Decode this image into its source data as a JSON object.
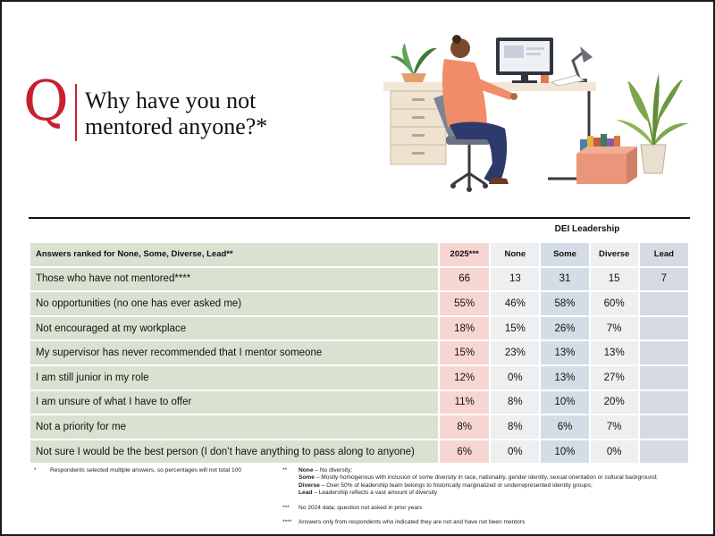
{
  "question": {
    "letter": "Q",
    "title": "Why have you not mentored anyone?*"
  },
  "group_header": "DEI Leadership",
  "table": {
    "headers": [
      "Answers ranked for None, Some, Diverse, Lead**",
      "2025***",
      "None",
      "Some",
      "Diverse",
      "Lead"
    ],
    "rows": [
      {
        "label": "Those who have not mentored****",
        "y2025": "66",
        "none": "13",
        "some": "31",
        "diverse": "15",
        "lead": "7"
      },
      {
        "label": "No opportunities (no one has ever asked me)",
        "y2025": "55%",
        "none": "46%",
        "some": "58%",
        "diverse": "60%",
        "lead": ""
      },
      {
        "label": "Not encouraged at my workplace",
        "y2025": "18%",
        "none": "15%",
        "some": "26%",
        "diverse": "7%",
        "lead": ""
      },
      {
        "label": "My supervisor has never recommended that I mentor someone",
        "y2025": "15%",
        "none": "23%",
        "some": "13%",
        "diverse": "13%",
        "lead": ""
      },
      {
        "label": "I am still junior in my role",
        "y2025": "12%",
        "none": "0%",
        "some": "13%",
        "diverse": "27%",
        "lead": ""
      },
      {
        "label": "I am unsure of what I have to offer",
        "y2025": "11%",
        "none": "8%",
        "some": "10%",
        "diverse": "20%",
        "lead": ""
      },
      {
        "label": "Not a priority for me",
        "y2025": "8%",
        "none": "8%",
        "some": "6%",
        "diverse": "7%",
        "lead": ""
      },
      {
        "label": "Not sure I would be the best person (I don’t have anything to pass along to anyone)",
        "y2025": "6%",
        "none": "0%",
        "some": "10%",
        "diverse": "0%",
        "lead": ""
      }
    ]
  },
  "footnotes": {
    "star1_mark": "*",
    "star1": "Respondents selected multiple answers, so percentages will not  total 100",
    "star2_mark": "**",
    "star2_none_term": "None",
    "star2_none_def": " – No diversity;",
    "star2_some_term": "Some",
    "star2_some_def": " – Mostly homogenous with inclusion of some diversity in race, nationality, gender identity, sexual orientation or cultural background;",
    "star2_diverse_term": "Diverse",
    "star2_diverse_def": " – Over 50% of leadership team belongs to historically marginalized or underrepresented identity groups;",
    "star2_lead_term": "Lead",
    "star2_lead_def": " – Leadership reflects a vast amount of diversity",
    "star3_mark": "***",
    "star3": "No 2024 data; question not asked in prior years",
    "star4_mark": "****",
    "star4": "Answers only from respondents who indicated they are not and have not been mentors"
  },
  "colors": {
    "accent_red": "#c8202f",
    "label_col": "#dbe1d0",
    "col_2025": "#f7d6d2",
    "col_none": "#eeeff1",
    "col_some": "#d4dde6",
    "col_lead": "#d7dae3"
  },
  "illustration": "person-working-at-desk-illustration"
}
